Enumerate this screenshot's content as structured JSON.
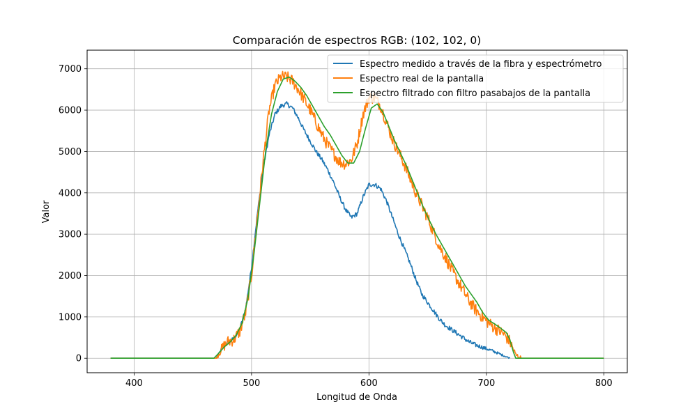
{
  "chart_data": {
    "type": "line",
    "title": "Comparación de espectros RGB: (102, 102, 0)",
    "xlabel": "Longitud de Onda",
    "ylabel": "Valor",
    "xlim": [
      360,
      820
    ],
    "ylim": [
      -350,
      7450
    ],
    "xticks": [
      400,
      500,
      600,
      700,
      800
    ],
    "yticks": [
      0,
      1000,
      2000,
      3000,
      4000,
      5000,
      6000,
      7000
    ],
    "grid": true,
    "legend_position": "top-right",
    "series": [
      {
        "name": "Espectro medido a través de la fibra y espectrómetro",
        "color": "#1f77b4",
        "noise": 55,
        "x": [
          380,
          470,
          475,
          480,
          485,
          490,
          495,
          500,
          505,
          510,
          515,
          520,
          525,
          530,
          535,
          540,
          545,
          550,
          555,
          560,
          565,
          570,
          575,
          580,
          585,
          590,
          595,
          600,
          605,
          610,
          615,
          620,
          625,
          630,
          635,
          640,
          645,
          650,
          655,
          660,
          665,
          670,
          675,
          680,
          685,
          690,
          695,
          700,
          705,
          710,
          715,
          720
        ],
        "y": [
          0,
          0,
          250,
          380,
          470,
          700,
          1200,
          2200,
          3500,
          4600,
          5400,
          5900,
          6100,
          6150,
          6050,
          5800,
          5500,
          5250,
          5000,
          4800,
          4550,
          4250,
          3900,
          3600,
          3400,
          3500,
          3900,
          4200,
          4200,
          4100,
          3800,
          3400,
          3000,
          2650,
          2300,
          1900,
          1550,
          1350,
          1150,
          950,
          800,
          700,
          600,
          500,
          400,
          330,
          280,
          230,
          180,
          120,
          60,
          0
        ]
      },
      {
        "name": "Espectro real de la pantalla",
        "color": "#ff7f0e",
        "noise": 150,
        "x": [
          380,
          470,
          475,
          480,
          485,
          490,
          495,
          500,
          505,
          510,
          515,
          520,
          525,
          530,
          535,
          540,
          545,
          550,
          555,
          560,
          565,
          570,
          575,
          580,
          585,
          590,
          595,
          600,
          605,
          610,
          615,
          620,
          625,
          630,
          635,
          640,
          645,
          650,
          655,
          660,
          665,
          670,
          675,
          680,
          685,
          690,
          695,
          700,
          705,
          710,
          715,
          720,
          725,
          730,
          800
        ],
        "y": [
          0,
          0,
          250,
          400,
          450,
          650,
          1100,
          2000,
          3400,
          4800,
          6000,
          6600,
          6800,
          6800,
          6700,
          6500,
          6250,
          6000,
          5700,
          5400,
          5150,
          4950,
          4750,
          4700,
          4800,
          5200,
          5900,
          6300,
          6300,
          6100,
          5700,
          5300,
          5000,
          4700,
          4350,
          4000,
          3700,
          3400,
          3050,
          2700,
          2450,
          2150,
          1900,
          1650,
          1400,
          1200,
          1050,
          900,
          780,
          680,
          580,
          400,
          80,
          0,
          0
        ]
      },
      {
        "name": "Espectro filtrado con filtro pasabajos de la pantalla",
        "color": "#2ca02c",
        "noise": 0,
        "x": [
          380,
          468,
          472,
          477,
          482,
          487,
          492,
          497,
          502,
          507,
          512,
          517,
          522,
          527,
          532,
          537,
          542,
          547,
          552,
          557,
          562,
          567,
          572,
          577,
          582,
          587,
          592,
          597,
          602,
          607,
          612,
          617,
          622,
          627,
          632,
          637,
          642,
          647,
          652,
          657,
          662,
          667,
          672,
          677,
          682,
          687,
          692,
          697,
          702,
          707,
          712,
          717,
          720,
          723,
          725,
          800
        ],
        "y": [
          0,
          0,
          120,
          280,
          400,
          560,
          850,
          1450,
          2500,
          3750,
          5000,
          5900,
          6450,
          6750,
          6800,
          6700,
          6550,
          6350,
          6100,
          5850,
          5600,
          5400,
          5150,
          4900,
          4720,
          4720,
          5000,
          5550,
          6050,
          6150,
          5950,
          5600,
          5250,
          4950,
          4650,
          4300,
          3950,
          3600,
          3300,
          3000,
          2750,
          2500,
          2250,
          2000,
          1750,
          1550,
          1350,
          1100,
          920,
          830,
          730,
          620,
          450,
          150,
          0,
          0
        ]
      }
    ]
  }
}
